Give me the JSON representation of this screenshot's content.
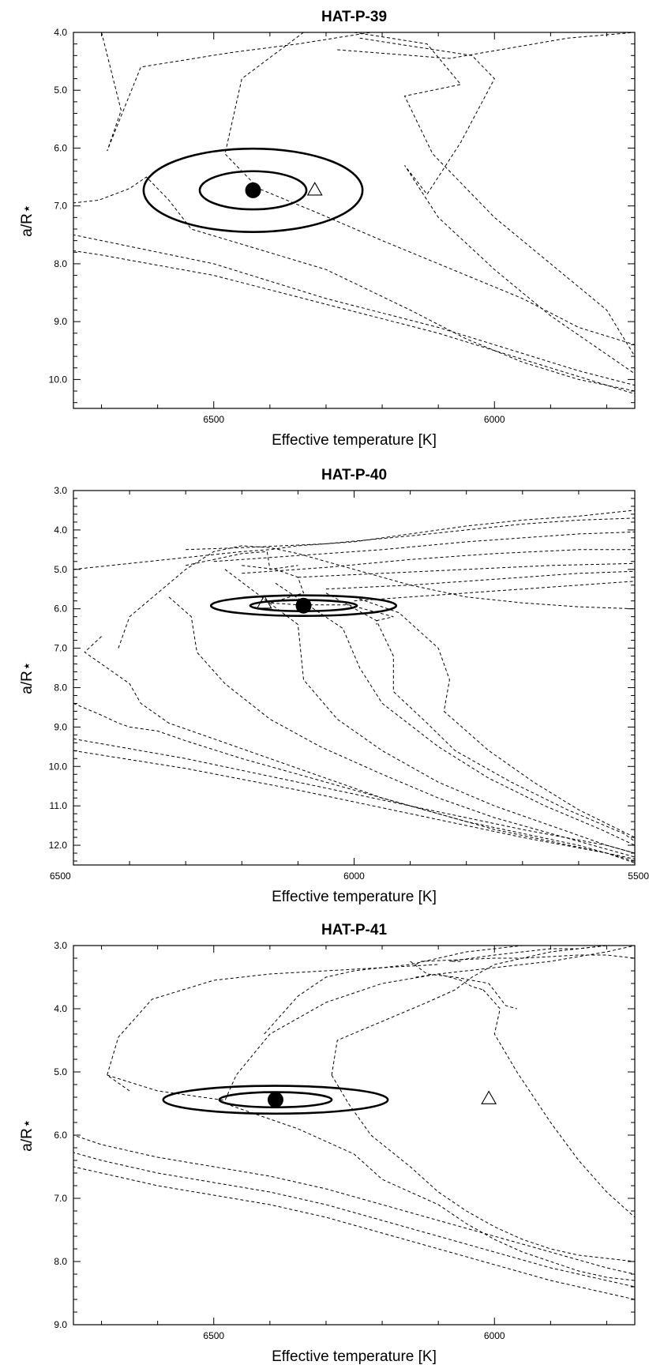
{
  "chart_data": [
    {
      "type": "line",
      "title": "HAT-P-39",
      "xlabel": "Effective temperature [K]",
      "ylabel": "a/R⋆",
      "xlim": [
        6750,
        5750
      ],
      "ylim": [
        4.0,
        10.5
      ],
      "x_reversed": true,
      "y_reversed": true,
      "xticks": [
        6500,
        6000
      ],
      "yticks": [
        4.0,
        5.0,
        6.0,
        7.0,
        8.0,
        9.0,
        10.0
      ],
      "marker_observed": {
        "teff": 6430,
        "a_over_rstar": 6.73
      },
      "marker_triangle": {
        "teff": 6320,
        "a_over_rstar": 6.72
      },
      "ellipses": [
        {
          "teff": 6430,
          "a_over_rstar": 6.73,
          "teff_halfwidth": 95,
          "a_halfwidth": 0.33
        },
        {
          "teff": 6430,
          "a_over_rstar": 6.73,
          "teff_halfwidth": 195,
          "a_halfwidth": 0.72
        }
      ],
      "series": [
        {
          "x": [
            6800,
            6705,
            6650,
            6620,
            6580,
            6540,
            6300,
            6150,
            6050,
            5950,
            5850,
            5750
          ],
          "y": [
            7.0,
            6.9,
            6.7,
            6.5,
            6.9,
            7.4,
            8.1,
            8.8,
            9.3,
            9.7,
            10.0,
            10.2
          ]
        },
        {
          "x": [
            6800,
            6700,
            6500,
            6300,
            6100,
            5950,
            5850,
            5750
          ],
          "y": [
            7.4,
            7.6,
            8.0,
            8.6,
            9.1,
            9.55,
            9.85,
            10.1
          ]
        },
        {
          "x": [
            6800,
            6700,
            6500,
            6300,
            6100,
            5950,
            5850,
            5750
          ],
          "y": [
            7.7,
            7.85,
            8.2,
            8.7,
            9.2,
            9.65,
            9.95,
            10.25
          ]
        },
        {
          "x": [
            6700,
            6665,
            6690,
            6630,
            6470,
            6350,
            6220
          ],
          "y": [
            4.0,
            5.35,
            6.05,
            4.6,
            4.35,
            4.2,
            4.0
          ]
        },
        {
          "x": [
            6340,
            6450,
            6480,
            6420,
            6320,
            6200,
            6100,
            5950,
            5850,
            5750
          ],
          "y": [
            4.0,
            4.8,
            6.1,
            6.7,
            7.1,
            7.6,
            8.0,
            8.6,
            9.1,
            9.4
          ]
        },
        {
          "x": [
            6250,
            6120,
            6060,
            6160,
            6110,
            6000,
            5900,
            5800,
            5750
          ],
          "y": [
            4.0,
            4.2,
            4.9,
            5.1,
            6.1,
            7.2,
            8.0,
            8.8,
            9.6
          ]
        },
        {
          "x": [
            6240,
            6040,
            6000,
            6060,
            6120,
            6160,
            6100,
            6000,
            5900,
            5750
          ],
          "y": [
            4.1,
            4.4,
            4.8,
            5.9,
            6.8,
            6.3,
            7.2,
            8.1,
            8.9,
            9.9
          ]
        },
        {
          "x": [
            6280,
            6080,
            5990,
            5870,
            5750
          ],
          "y": [
            4.3,
            4.45,
            4.3,
            4.1,
            4.0
          ]
        }
      ]
    },
    {
      "type": "line",
      "title": "HAT-P-40",
      "xlabel": "Effective temperature [K]",
      "ylabel": "a/R⋆",
      "xlim": [
        6500,
        5500
      ],
      "ylim": [
        3.0,
        12.5
      ],
      "x_reversed": true,
      "y_reversed": true,
      "xticks": [
        6500,
        6000,
        5500
      ],
      "yticks": [
        3.0,
        4.0,
        5.0,
        6.0,
        7.0,
        8.0,
        9.0,
        10.0,
        11.0,
        12.0
      ],
      "marker_observed": {
        "teff": 6090,
        "a_over_rstar": 5.92
      },
      "marker_triangle": {
        "teff": 6160,
        "a_over_rstar": 5.85
      },
      "ellipses": [
        {
          "teff": 6090,
          "a_over_rstar": 5.92,
          "teff_halfwidth": 95,
          "a_halfwidth": 0.14
        },
        {
          "teff": 6090,
          "a_over_rstar": 5.92,
          "teff_halfwidth": 165,
          "a_halfwidth": 0.26
        }
      ],
      "series": [
        {
          "x": [
            6500,
            6300,
            6200,
            6150,
            6100,
            6000,
            5900,
            5800,
            5700,
            5600,
            5500
          ],
          "y": [
            5.0,
            4.7,
            4.55,
            4.5,
            4.4,
            4.3,
            4.1,
            3.9,
            3.75,
            3.65,
            3.5
          ]
        },
        {
          "x": [
            6300,
            6200,
            6050,
            5900,
            5800,
            5700,
            5600,
            5500
          ],
          "y": [
            4.5,
            4.45,
            4.35,
            4.15,
            4.0,
            3.85,
            3.75,
            3.7
          ]
        },
        {
          "x": [
            6250,
            6100,
            5950,
            5800,
            5700,
            5600,
            5500
          ],
          "y": [
            4.8,
            4.65,
            4.5,
            4.3,
            4.2,
            4.1,
            4.05
          ]
        },
        {
          "x": [
            6200,
            6050,
            5900,
            5750,
            5600,
            5500
          ],
          "y": [
            5.1,
            4.95,
            4.75,
            4.6,
            4.5,
            4.5
          ]
        },
        {
          "x": [
            6100,
            5950,
            5800,
            5650,
            5500
          ],
          "y": [
            5.2,
            5.1,
            5.0,
            4.9,
            4.85
          ]
        },
        {
          "x": [
            6050,
            5900,
            5750,
            5600,
            5500
          ],
          "y": [
            5.5,
            5.4,
            5.25,
            5.1,
            5.05
          ]
        },
        {
          "x": [
            6000,
            5850,
            5700,
            5500
          ],
          "y": [
            5.8,
            5.65,
            5.5,
            5.3
          ]
        },
        {
          "x": [
            6300,
            6200,
            6155,
            6150,
            6100
          ],
          "y": [
            4.9,
            4.6,
            4.55,
            5.0,
            4.9
          ]
        },
        {
          "x": [
            6200,
            6140,
            6100,
            6090,
            6150,
            6100,
            6010
          ],
          "y": [
            4.9,
            5.0,
            5.2,
            5.6,
            5.85,
            5.9,
            5.9
          ]
        },
        {
          "x": [
            6500,
            6450,
            6420,
            6400,
            6350,
            6300,
            6200,
            6100,
            6000,
            5900,
            5800,
            5700,
            5600,
            5500
          ],
          "y": [
            8.4,
            8.7,
            8.9,
            9.0,
            9.1,
            9.35,
            9.8,
            10.2,
            10.6,
            11.0,
            11.4,
            11.7,
            12.0,
            12.4
          ]
        },
        {
          "x": [
            6500,
            6300,
            6100,
            5900,
            5700,
            5550,
            5500
          ],
          "y": [
            9.3,
            9.8,
            10.4,
            11.0,
            11.6,
            12.0,
            12.2
          ]
        },
        {
          "x": [
            6500,
            6300,
            6100,
            5900,
            5700,
            5550,
            5500
          ],
          "y": [
            9.6,
            10.05,
            10.6,
            11.2,
            11.8,
            12.2,
            12.45
          ]
        },
        {
          "x": [
            6420,
            6400,
            6300,
            6250,
            6200,
            6150,
            6100,
            6050,
            6000,
            5900,
            5800,
            5700,
            5600,
            5500
          ],
          "y": [
            7.0,
            6.2,
            5.0,
            4.55,
            4.4,
            4.45,
            4.6,
            4.8,
            5.0,
            5.4,
            5.7,
            5.85,
            5.95,
            6.0
          ]
        },
        {
          "x": [
            6450,
            6480,
            6400,
            6380,
            6330,
            6250,
            6150,
            6050,
            5950,
            5850,
            5750,
            5650,
            5550,
            5500
          ],
          "y": [
            6.7,
            7.1,
            7.9,
            8.4,
            8.9,
            9.3,
            9.8,
            10.3,
            10.8,
            11.2,
            11.6,
            11.9,
            12.2,
            12.35
          ]
        },
        {
          "x": [
            6330,
            6290,
            6280,
            6230,
            6150,
            6060,
            5950,
            5850,
            5750,
            5650,
            5550,
            5500
          ],
          "y": [
            5.7,
            6.2,
            7.1,
            7.9,
            8.8,
            9.5,
            10.2,
            10.8,
            11.3,
            11.7,
            12.1,
            12.3
          ]
        },
        {
          "x": [
            6230,
            6100,
            6090,
            6030,
            5950,
            5850,
            5750,
            5650,
            5550,
            5500
          ],
          "y": [
            5.0,
            6.4,
            7.8,
            8.8,
            9.6,
            10.4,
            11.0,
            11.5,
            12.0,
            12.2
          ]
        },
        {
          "x": [
            6140,
            6020,
            5990,
            5950,
            5850,
            5760,
            5660,
            5560,
            5500
          ],
          "y": [
            5.35,
            6.5,
            7.5,
            8.4,
            9.5,
            10.3,
            11.0,
            11.6,
            12.0
          ]
        },
        {
          "x": [
            6050,
            5960,
            5930,
            5930,
            5870,
            5820,
            5720,
            5620,
            5520,
            5500
          ],
          "y": [
            5.6,
            6.3,
            7.2,
            8.1,
            8.9,
            9.6,
            10.4,
            11.1,
            11.7,
            11.9
          ]
        },
        {
          "x": [
            6000,
            5920,
            5850,
            5830,
            5840,
            5760,
            5680,
            5600,
            5500
          ],
          "y": [
            5.7,
            6.1,
            7.0,
            7.8,
            8.6,
            9.6,
            10.4,
            11.1,
            11.8
          ]
        },
        {
          "x": [
            6010,
            5930,
            5960,
            5960
          ],
          "y": [
            5.9,
            6.2,
            6.3,
            6.4
          ]
        }
      ]
    },
    {
      "type": "line",
      "title": "HAT-P-41",
      "xlabel": "Effective temperature [K]",
      "ylabel": "a/R⋆",
      "xlim": [
        6750,
        5750
      ],
      "ylim": [
        3.0,
        9.0
      ],
      "x_reversed": true,
      "y_reversed": true,
      "xticks": [
        6500,
        6000
      ],
      "yticks": [
        3.0,
        4.0,
        5.0,
        6.0,
        7.0,
        8.0,
        9.0
      ],
      "marker_observed": {
        "teff": 6390,
        "a_over_rstar": 5.44
      },
      "marker_triangle": {
        "teff": 6010,
        "a_over_rstar": 5.42
      },
      "ellipses": [
        {
          "teff": 6390,
          "a_over_rstar": 5.44,
          "teff_halfwidth": 100,
          "a_halfwidth": 0.12
        },
        {
          "teff": 6390,
          "a_over_rstar": 5.44,
          "teff_halfwidth": 200,
          "a_halfwidth": 0.22
        }
      ],
      "series": [
        {
          "x": [
            6800,
            6700,
            6600,
            6500,
            6400,
            6300,
            6200,
            6100,
            6000,
            5900,
            5800,
            5750
          ],
          "y": [
            5.85,
            6.15,
            6.35,
            6.5,
            6.65,
            6.85,
            7.1,
            7.35,
            7.6,
            7.85,
            8.1,
            8.2
          ]
        },
        {
          "x": [
            6800,
            6700,
            6600,
            6500,
            6400,
            6300,
            6200,
            6100,
            6000,
            5900,
            5800,
            5750
          ],
          "y": [
            6.15,
            6.4,
            6.6,
            6.75,
            6.9,
            7.1,
            7.35,
            7.6,
            7.85,
            8.1,
            8.3,
            8.4
          ]
        },
        {
          "x": [
            6800,
            6700,
            6600,
            6500,
            6400,
            6300,
            6200,
            6100,
            6000,
            5900,
            5800,
            5750
          ],
          "y": [
            6.4,
            6.6,
            6.8,
            6.95,
            7.1,
            7.3,
            7.55,
            7.8,
            8.05,
            8.3,
            8.5,
            8.6
          ]
        },
        {
          "x": [
            6650,
            6690,
            6670,
            6610,
            6500,
            6400,
            6300,
            6200,
            6100
          ],
          "y": [
            5.3,
            5.05,
            4.45,
            3.85,
            3.55,
            3.45,
            3.4,
            3.35,
            3.3
          ]
        },
        {
          "x": [
            6690,
            6600,
            6480,
            6460,
            6400,
            6300,
            6200,
            6100,
            6000,
            5900,
            5800,
            5750
          ],
          "y": [
            5.05,
            5.3,
            5.45,
            5.05,
            4.4,
            3.9,
            3.6,
            3.45,
            3.35,
            3.25,
            3.1,
            3.0
          ]
        },
        {
          "x": [
            6480,
            6350,
            6250,
            6200,
            6100,
            6050,
            6000,
            5950,
            5900,
            5850,
            5800,
            5750
          ],
          "y": [
            5.5,
            5.9,
            6.3,
            6.7,
            7.1,
            7.4,
            7.65,
            7.85,
            8.0,
            8.15,
            8.25,
            8.3
          ]
        },
        {
          "x": [
            6410,
            6350,
            6300,
            6250,
            6150,
            6100,
            6050,
            6000,
            5950,
            5900,
            5800,
            5750
          ],
          "y": [
            4.4,
            3.8,
            3.5,
            3.4,
            3.3,
            3.2,
            3.1,
            3.05,
            3.0,
            3.0,
            3.0,
            3.0
          ]
        },
        {
          "x": [
            6290,
            6280,
            6200,
            6120,
            6070,
            6040,
            6000,
            5950,
            5900,
            5850,
            5800,
            5750
          ],
          "y": [
            5.05,
            4.5,
            4.2,
            3.9,
            3.7,
            3.5,
            3.3,
            3.2,
            3.1,
            3.05,
            3.0,
            3.0
          ]
        },
        {
          "x": [
            6290,
            6260,
            6220,
            6150,
            6100,
            6050,
            6000,
            5950,
            5900,
            5850,
            5800,
            5750
          ],
          "y": [
            5.05,
            5.5,
            6.0,
            6.5,
            6.9,
            7.2,
            7.45,
            7.65,
            7.8,
            7.9,
            7.95,
            8.0
          ]
        },
        {
          "x": [
            6150,
            6120,
            6070,
            6010,
            5980,
            5960
          ],
          "y": [
            3.25,
            3.45,
            3.5,
            3.6,
            3.95,
            4.0
          ]
        },
        {
          "x": [
            6140,
            6100,
            6060,
            6050,
            6040,
            6020
          ],
          "y": [
            3.5,
            3.45,
            3.55,
            3.6,
            3.65,
            3.7
          ]
        },
        {
          "x": [
            6060,
            6080,
            6040,
            6000,
            5950,
            5900,
            5850,
            5800,
            5750
          ],
          "y": [
            3.25,
            3.25,
            3.2,
            3.15,
            3.1,
            3.05,
            3.05,
            3.0,
            3.0
          ]
        },
        {
          "x": [
            6020,
            5990,
            6000,
            5960,
            5900,
            5850,
            5800,
            5750
          ],
          "y": [
            3.7,
            4.0,
            4.4,
            5.0,
            5.8,
            6.4,
            6.9,
            7.3
          ]
        },
        {
          "x": [
            6140,
            6130,
            6000,
            5950,
            5850,
            5800,
            5750
          ],
          "y": [
            3.3,
            3.25,
            3.2,
            3.2,
            3.15,
            3.15,
            3.2
          ]
        }
      ]
    }
  ]
}
